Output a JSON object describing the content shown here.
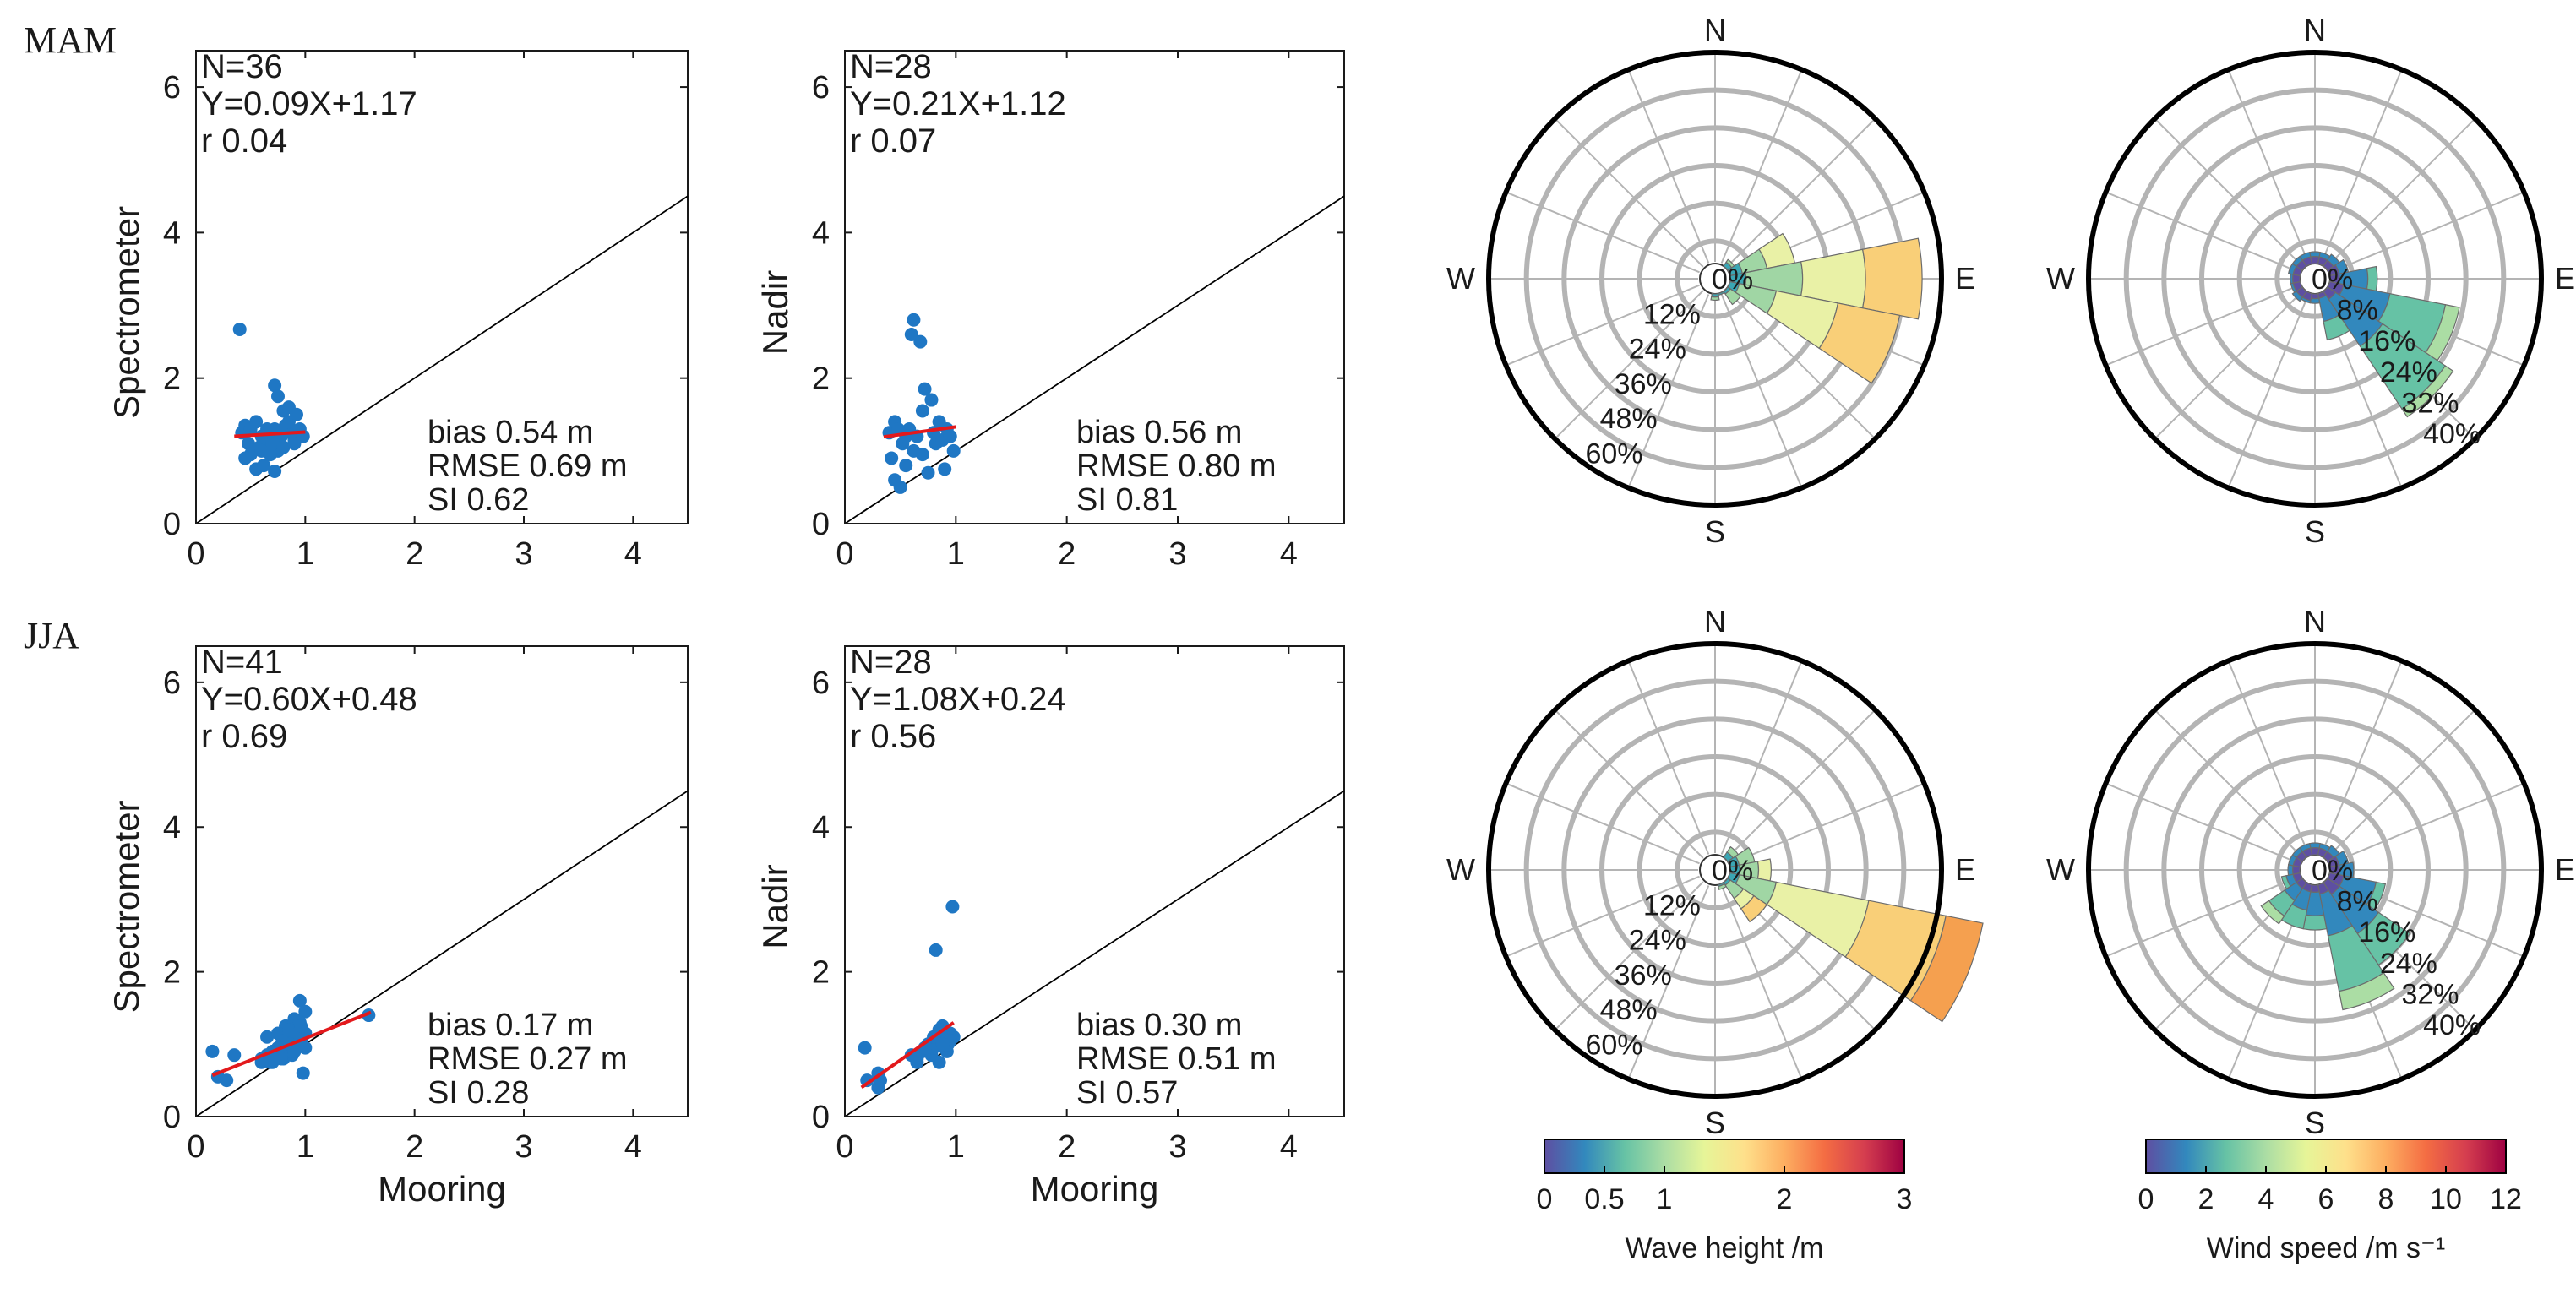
{
  "season_labels": [
    "MAM",
    "JJA"
  ],
  "scatter_axes": {
    "x_ticks": [
      "0",
      "1",
      "2",
      "3",
      "4"
    ],
    "y_ticks": [
      "0",
      "2",
      "4",
      "6"
    ],
    "xlim": [
      0,
      4.5
    ],
    "ylim": [
      0,
      6.5
    ],
    "xlabel": "Mooring"
  },
  "chart_data": [
    {
      "type": "scatter",
      "season": "MAM",
      "ylabel": "Spectrometer",
      "stats": {
        "n": "N=36",
        "fit": "Y=0.09X+1.17",
        "r": "r 0.04",
        "bias": "bias 0.54 m",
        "rmse": "RMSE 0.69 m",
        "si": "SI 0.62"
      },
      "fit": {
        "slope": 0.09,
        "intercept": 1.17,
        "x_range": [
          0.35,
          1.0
        ]
      },
      "points": [
        [
          0.4,
          2.67
        ],
        [
          0.42,
          1.25
        ],
        [
          0.45,
          1.35
        ],
        [
          0.48,
          1.1
        ],
        [
          0.5,
          0.95
        ],
        [
          0.5,
          1.3
        ],
        [
          0.55,
          0.75
        ],
        [
          0.58,
          1.05
        ],
        [
          0.6,
          1.2
        ],
        [
          0.62,
          0.8
        ],
        [
          0.65,
          1.0
        ],
        [
          0.68,
          1.15
        ],
        [
          0.7,
          1.25
        ],
        [
          0.72,
          1.3
        ],
        [
          0.72,
          1.9
        ],
        [
          0.72,
          0.72
        ],
        [
          0.75,
          1.0
        ],
        [
          0.75,
          1.75
        ],
        [
          0.78,
          1.2
        ],
        [
          0.8,
          1.55
        ],
        [
          0.82,
          1.35
        ],
        [
          0.85,
          1.6
        ],
        [
          0.88,
          1.25
        ],
        [
          0.9,
          1.15
        ],
        [
          0.92,
          1.5
        ],
        [
          0.95,
          1.3
        ],
        [
          0.98,
          1.2
        ],
        [
          0.55,
          1.4
        ],
        [
          0.6,
          1.0
        ],
        [
          0.65,
          1.3
        ],
        [
          0.7,
          1.1
        ],
        [
          0.8,
          1.05
        ],
        [
          0.85,
          1.4
        ],
        [
          0.9,
          1.1
        ],
        [
          0.45,
          0.9
        ],
        [
          0.68,
          0.95
        ]
      ]
    },
    {
      "type": "scatter",
      "season": "MAM",
      "ylabel": "Nadir",
      "stats": {
        "n": "N=28",
        "fit": "Y=0.21X+1.12",
        "r": "r 0.07",
        "bias": "bias 0.56 m",
        "rmse": "RMSE 0.80 m",
        "si": "SI 0.81"
      },
      "fit": {
        "slope": 0.21,
        "intercept": 1.12,
        "x_range": [
          0.35,
          1.0
        ]
      },
      "points": [
        [
          0.4,
          1.25
        ],
        [
          0.42,
          0.9
        ],
        [
          0.45,
          1.4
        ],
        [
          0.45,
          0.6
        ],
        [
          0.5,
          0.5
        ],
        [
          0.52,
          1.1
        ],
        [
          0.55,
          0.8
        ],
        [
          0.58,
          1.3
        ],
        [
          0.6,
          2.6
        ],
        [
          0.62,
          2.8
        ],
        [
          0.62,
          1.0
        ],
        [
          0.65,
          1.2
        ],
        [
          0.68,
          2.5
        ],
        [
          0.7,
          1.55
        ],
        [
          0.7,
          0.95
        ],
        [
          0.72,
          1.85
        ],
        [
          0.75,
          0.7
        ],
        [
          0.78,
          1.7
        ],
        [
          0.8,
          1.25
        ],
        [
          0.82,
          1.1
        ],
        [
          0.85,
          1.4
        ],
        [
          0.88,
          1.15
        ],
        [
          0.9,
          0.75
        ],
        [
          0.92,
          1.3
        ],
        [
          0.95,
          1.2
        ],
        [
          0.98,
          1.0
        ],
        [
          0.55,
          1.2
        ],
        [
          0.48,
          1.3
        ]
      ]
    },
    {
      "type": "scatter",
      "season": "JJA",
      "ylabel": "Spectrometer",
      "stats": {
        "n": "N=41",
        "fit": "Y=0.60X+0.48",
        "r": "r 0.69",
        "bias": "bias 0.17 m",
        "rmse": "RMSE 0.27 m",
        "si": "SI 0.28"
      },
      "fit": {
        "slope": 0.6,
        "intercept": 0.48,
        "x_range": [
          0.15,
          1.6
        ]
      },
      "points": [
        [
          0.15,
          0.9
        ],
        [
          0.2,
          0.55
        ],
        [
          0.28,
          0.5
        ],
        [
          0.35,
          0.85
        ],
        [
          0.6,
          0.8
        ],
        [
          0.65,
          1.1
        ],
        [
          0.68,
          0.75
        ],
        [
          0.7,
          0.9
        ],
        [
          0.72,
          0.85
        ],
        [
          0.75,
          0.95
        ],
        [
          0.78,
          1.0
        ],
        [
          0.8,
          0.8
        ],
        [
          0.82,
          1.25
        ],
        [
          0.85,
          0.95
        ],
        [
          0.88,
          1.1
        ],
        [
          0.9,
          1.0
        ],
        [
          0.9,
          1.35
        ],
        [
          0.92,
          1.2
        ],
        [
          0.95,
          1.05
        ],
        [
          0.95,
          1.6
        ],
        [
          0.98,
          0.6
        ],
        [
          1.0,
          1.15
        ],
        [
          1.0,
          1.45
        ],
        [
          0.75,
          1.15
        ],
        [
          0.8,
          1.05
        ],
        [
          0.85,
          1.2
        ],
        [
          0.88,
          0.85
        ],
        [
          0.92,
          0.95
        ],
        [
          0.95,
          1.3
        ],
        [
          0.97,
          1.1
        ],
        [
          1.0,
          0.95
        ],
        [
          0.7,
          0.75
        ],
        [
          0.65,
          0.85
        ],
        [
          0.6,
          0.75
        ],
        [
          0.83,
          0.9
        ],
        [
          0.86,
          1.0
        ],
        [
          0.93,
          1.15
        ],
        [
          0.96,
          1.25
        ],
        [
          1.58,
          1.4
        ],
        [
          0.78,
          0.8
        ],
        [
          0.9,
          0.9
        ]
      ]
    },
    {
      "type": "scatter",
      "season": "JJA",
      "ylabel": "Nadir",
      "stats": {
        "n": "N=28",
        "fit": "Y=1.08X+0.24",
        "r": "r 0.56",
        "bias": "bias 0.30 m",
        "rmse": "RMSE 0.51 m",
        "si": "SI 0.57"
      },
      "fit": {
        "slope": 1.08,
        "intercept": 0.24,
        "x_range": [
          0.15,
          0.98
        ]
      },
      "points": [
        [
          0.18,
          0.95
        ],
        [
          0.2,
          0.5
        ],
        [
          0.3,
          0.6
        ],
        [
          0.3,
          0.4
        ],
        [
          0.32,
          0.5
        ],
        [
          0.6,
          0.85
        ],
        [
          0.65,
          0.75
        ],
        [
          0.7,
          0.9
        ],
        [
          0.75,
          1.0
        ],
        [
          0.78,
          0.85
        ],
        [
          0.8,
          0.95
        ],
        [
          0.82,
          2.3
        ],
        [
          0.85,
          1.1
        ],
        [
          0.85,
          0.75
        ],
        [
          0.88,
          1.25
        ],
        [
          0.9,
          1.05
        ],
        [
          0.92,
          0.9
        ],
        [
          0.95,
          1.15
        ],
        [
          0.97,
          2.9
        ],
        [
          0.98,
          1.1
        ],
        [
          0.72,
          0.95
        ],
        [
          0.8,
          1.1
        ],
        [
          0.85,
          1.2
        ],
        [
          0.9,
          0.95
        ],
        [
          0.93,
          1.0
        ],
        [
          0.95,
          1.05
        ],
        [
          0.65,
          0.8
        ],
        [
          0.88,
          1.0
        ]
      ]
    },
    {
      "type": "rose",
      "season": "MAM",
      "variable": "wave",
      "compass": [
        "N",
        "E",
        "S",
        "W"
      ],
      "ring_labels": [
        "0%",
        "12%",
        "24%",
        "36%",
        "48%",
        "60%"
      ],
      "ring_values": [
        12,
        24,
        36,
        48,
        60
      ],
      "rmax": 72,
      "directions_deg": [
        45,
        67.5,
        90,
        112.5,
        135,
        157.5,
        180
      ],
      "stacks": [
        [
          1.5,
          1,
          0,
          0
        ],
        [
          4,
          8,
          9,
          0
        ],
        [
          5,
          18,
          20,
          18
        ],
        [
          3,
          12,
          20,
          20
        ],
        [
          1,
          4,
          0,
          0
        ],
        [
          0.5,
          0,
          0,
          0
        ],
        [
          1,
          1,
          0,
          0
        ]
      ],
      "bin_colors": [
        "#3aa6b4",
        "#a0d6a4",
        "#e9f1a6",
        "#f9cf78"
      ]
    },
    {
      "type": "rose",
      "season": "MAM",
      "variable": "wind",
      "compass": [
        "N",
        "E",
        "S",
        "W"
      ],
      "ring_labels": [
        "0%",
        "8%",
        "16%",
        "24%",
        "32%",
        "40%"
      ],
      "ring_values": [
        8,
        16,
        24,
        32,
        40
      ],
      "rmax": 48,
      "directions_deg": [
        0,
        22.5,
        45,
        67.5,
        90,
        112.5,
        135,
        157.5,
        180,
        202.5,
        225,
        247.5,
        270,
        292.5,
        315,
        337.5
      ],
      "stacks": [
        [
          1.5,
          1,
          0,
          0
        ],
        [
          1.5,
          1,
          0,
          0
        ],
        [
          1.5,
          1.5,
          0,
          0
        ],
        [
          2,
          2,
          0,
          0
        ],
        [
          2,
          6,
          2,
          0
        ],
        [
          3,
          10,
          12,
          3
        ],
        [
          2,
          12,
          16,
          2
        ],
        [
          1,
          5,
          4,
          0
        ],
        [
          1,
          1,
          0,
          0
        ],
        [
          1.5,
          0.5,
          0,
          0
        ],
        [
          1.5,
          1,
          0,
          0
        ],
        [
          1.5,
          0.5,
          0,
          0
        ],
        [
          1.5,
          0.5,
          0,
          0
        ],
        [
          1.5,
          1,
          0,
          0
        ],
        [
          1.5,
          1,
          0,
          0
        ],
        [
          1.5,
          1,
          0,
          0
        ]
      ],
      "bin_colors": [
        "#5e4fa2",
        "#3288bd",
        "#66c2a5",
        "#abdda4"
      ]
    },
    {
      "type": "rose",
      "season": "JJA",
      "variable": "wave",
      "compass": [
        "N",
        "E",
        "S",
        "W"
      ],
      "ring_labels": [
        "0%",
        "12%",
        "24%",
        "36%",
        "48%",
        "60%"
      ],
      "ring_values": [
        12,
        24,
        36,
        48,
        60
      ],
      "rmax": 72,
      "directions_deg": [
        45,
        67.5,
        90,
        112.5,
        135,
        157.5
      ],
      "stacks": [
        [
          2,
          2,
          0,
          0,
          0
        ],
        [
          3,
          5,
          0,
          0,
          0
        ],
        [
          3,
          6,
          4,
          0,
          0
        ],
        [
          3,
          12,
          30,
          25,
          12
        ],
        [
          1,
          5,
          4,
          5,
          0
        ],
        [
          0.5,
          1,
          0,
          0,
          0
        ]
      ],
      "bin_colors": [
        "#3aa6b4",
        "#a0d6a4",
        "#e9f1a6",
        "#f9cf78",
        "#f5a04f"
      ]
    },
    {
      "type": "rose",
      "season": "JJA",
      "variable": "wind",
      "compass": [
        "N",
        "E",
        "S",
        "W"
      ],
      "ring_labels": [
        "0%",
        "8%",
        "16%",
        "24%",
        "32%",
        "40%"
      ],
      "ring_values": [
        8,
        16,
        24,
        32,
        40
      ],
      "rmax": 48,
      "directions_deg": [
        0,
        22.5,
        45,
        67.5,
        90,
        112.5,
        135,
        157.5,
        180,
        202.5,
        225,
        247.5,
        270,
        292.5,
        315,
        337.5
      ],
      "stacks": [
        [
          1.5,
          1,
          0,
          0
        ],
        [
          1.5,
          1,
          0,
          0
        ],
        [
          1.5,
          1.5,
          0,
          0
        ],
        [
          2,
          2,
          0,
          0
        ],
        [
          2,
          3,
          0,
          0
        ],
        [
          3,
          7,
          2,
          0
        ],
        [
          3,
          10,
          8,
          0
        ],
        [
          2,
          9,
          12,
          4
        ],
        [
          1.5,
          5,
          3,
          0
        ],
        [
          1.5,
          4,
          4,
          0
        ],
        [
          1.5,
          3,
          4,
          2
        ],
        [
          1.5,
          1.5,
          1,
          0
        ],
        [
          1.5,
          1,
          0,
          0
        ],
        [
          1.5,
          1,
          0,
          0
        ],
        [
          1.5,
          1,
          0,
          0
        ],
        [
          1.5,
          1,
          0,
          0
        ]
      ],
      "bin_colors": [
        "#5e4fa2",
        "#3288bd",
        "#66c2a5",
        "#abdda4"
      ]
    }
  ],
  "colorbars": [
    {
      "label": "Wave height /m",
      "min": 0,
      "max": 3,
      "tick_values": [
        0,
        0.5,
        1,
        2,
        3
      ],
      "tick_labels": [
        "0",
        "0.5",
        "1",
        "2",
        "3"
      ],
      "colors": [
        "#5e4fa2",
        "#3288bd",
        "#66c2a5",
        "#abdda4",
        "#e6f598",
        "#fee08b",
        "#fdae61",
        "#f46d43",
        "#d53e4f",
        "#9e0142"
      ]
    },
    {
      "label": "Wind speed /m s⁻¹",
      "min": 0,
      "max": 12,
      "tick_values": [
        0,
        2,
        4,
        6,
        8,
        10,
        12
      ],
      "tick_labels": [
        "0",
        "2",
        "4",
        "6",
        "8",
        "10",
        "12"
      ],
      "colors": [
        "#5e4fa2",
        "#3288bd",
        "#66c2a5",
        "#abdda4",
        "#e6f598",
        "#fee08b",
        "#fdae61",
        "#f46d43",
        "#d53e4f",
        "#9e0142"
      ]
    }
  ],
  "colors": {
    "point": "#1f77c4",
    "fit": "#e3191c",
    "grid": "#b4b4b4",
    "axis": "#1a1a1a"
  }
}
